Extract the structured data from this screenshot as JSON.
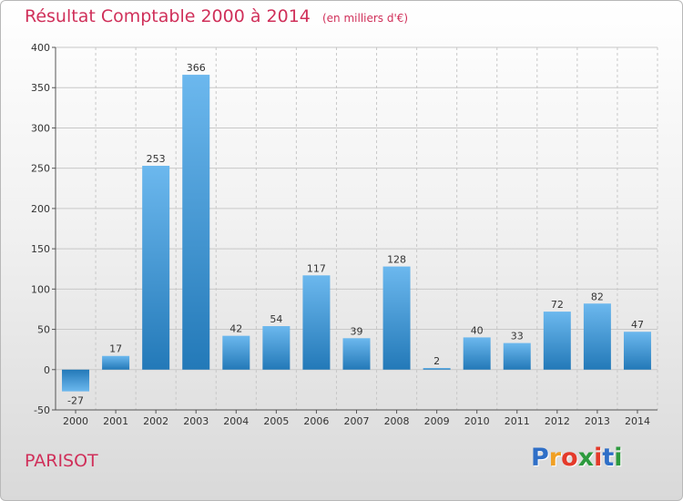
{
  "chart_data": {
    "type": "bar",
    "title": "Résultat Comptable 2000 à 2014",
    "subtitle": "(en milliers d'€)",
    "categories": [
      "2000",
      "2001",
      "2002",
      "2003",
      "2004",
      "2005",
      "2006",
      "2007",
      "2008",
      "2009",
      "2010",
      "2011",
      "2012",
      "2013",
      "2014"
    ],
    "values": [
      -27,
      17,
      253,
      366,
      42,
      54,
      117,
      39,
      128,
      2,
      40,
      33,
      72,
      82,
      47
    ],
    "ylim": [
      -50,
      400
    ],
    "yticks": [
      -50,
      0,
      50,
      100,
      150,
      200,
      250,
      300,
      350,
      400
    ],
    "grid": true,
    "bar_color": "#3a98d8",
    "bar_color_light": "#6cb8ee",
    "bar_color_dark": "#2379b8"
  },
  "place": {
    "name": "PARISOT"
  },
  "brand": {
    "name": "Proxiti",
    "letters": [
      {
        "ch": "P",
        "color": "#2f6fc7"
      },
      {
        "ch": "r",
        "color": "#f0a024"
      },
      {
        "ch": "o",
        "color": "#e43a2a"
      },
      {
        "ch": "x",
        "color": "#2d9a3e"
      },
      {
        "ch": "i",
        "color": "#e43a2a"
      },
      {
        "ch": "t",
        "color": "#2f6fc7"
      },
      {
        "ch": "i",
        "color": "#2d9a3e"
      }
    ]
  },
  "colors": {
    "accent": "#d0305a"
  }
}
